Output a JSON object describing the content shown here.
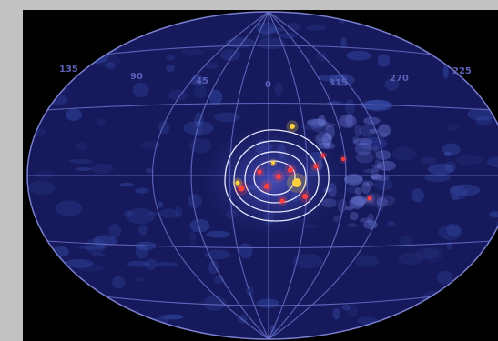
{
  "image": {
    "kind": "all-sky map, aitoff projection",
    "colors": {
      "page_background": "#bfbfbf",
      "frame_background": "#000000",
      "sky_background": "#161a5c",
      "grid_line": "#6b70c8",
      "contour": "#e8e8ff",
      "hot_emission": "#ffd040",
      "warm_emission": "#ff4040",
      "cool_emission": "#4a6ad8"
    }
  },
  "labels": {
    "lon_135": "135",
    "lon_90": "90",
    "lon_45": "45",
    "lon_0": "0",
    "lon_315": "315",
    "lon_270": "270",
    "lon_225": "225"
  }
}
